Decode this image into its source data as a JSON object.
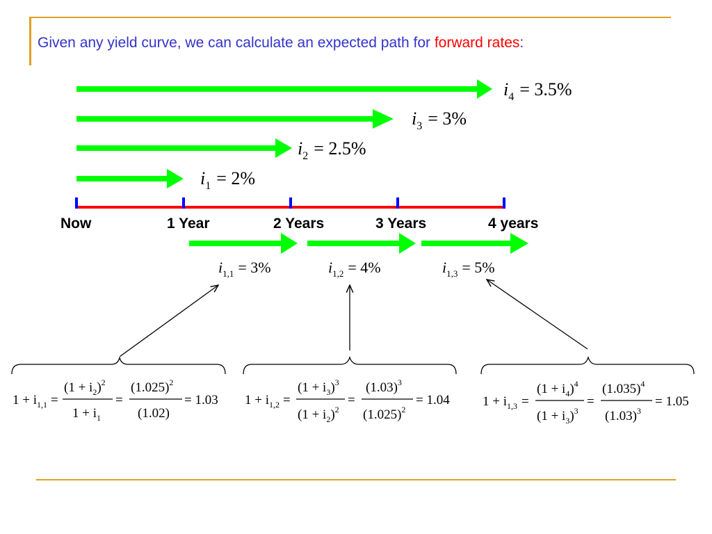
{
  "title": {
    "prefix": "Given any yield curve, we can calculate an expected path for ",
    "highlight": "forward rates",
    "suffix": ":"
  },
  "timeline": {
    "labels": [
      "Now",
      "1 Year",
      "2 Years",
      "3 Years",
      "4 years"
    ]
  },
  "spot_rates": [
    {
      "var": "i",
      "sub": "4",
      "rhs": "= 3.5%"
    },
    {
      "var": "i",
      "sub": "3",
      "rhs": "= 3%"
    },
    {
      "var": "i",
      "sub": "2",
      "rhs": "= 2.5%"
    },
    {
      "var": "i",
      "sub": "1",
      "rhs": "= 2%"
    }
  ],
  "forward_rates": [
    {
      "var": "i",
      "sub": "1,1",
      "rhs": "= 3%"
    },
    {
      "var": "i",
      "sub": "1,2",
      "rhs": "= 4%"
    },
    {
      "var": "i",
      "sub": "1,3",
      "rhs": "= 5%"
    }
  ],
  "formulas": [
    {
      "lhs": "1 + i",
      "lhs_sub": "1,1",
      "eq": "=",
      "f1_num": "(1 + i",
      "f1_num_sub": "2",
      "f1_num_tail": ")",
      "f1_num_exp": "2",
      "f1_den": "1 + i",
      "f1_den_sub": "1",
      "f1_den_tail": "",
      "f1_den_exp": "",
      "f2_num": "(1.025)",
      "f2_num_exp": "2",
      "f2_den": "(1.02)",
      "f2_den_exp": "",
      "result": "= 1.03"
    },
    {
      "lhs": "1 + i",
      "lhs_sub": "1,2",
      "eq": "=",
      "f1_num": "(1 + i",
      "f1_num_sub": "3",
      "f1_num_tail": ")",
      "f1_num_exp": "3",
      "f1_den": "(1 + i",
      "f1_den_sub": "2",
      "f1_den_tail": ")",
      "f1_den_exp": "2",
      "f2_num": "(1.03)",
      "f2_num_exp": "3",
      "f2_den": "(1.025)",
      "f2_den_exp": "2",
      "result": "= 1.04"
    },
    {
      "lhs": "1 + i",
      "lhs_sub": "1,3",
      "eq": "=",
      "f1_num": "(1 + i",
      "f1_num_sub": "4",
      "f1_num_tail": ")",
      "f1_num_exp": "4",
      "f1_den": "(1 + i",
      "f1_den_sub": "3",
      "f1_den_tail": ")",
      "f1_den_exp": "3",
      "f2_num": "(1.035)",
      "f2_num_exp": "4",
      "f2_den": "(1.03)",
      "f2_den_exp": "3",
      "result": "= 1.05"
    }
  ],
  "colors": {
    "arrow": "#00ff00",
    "timeline": "#ff0000",
    "tick": "#0000ff",
    "frame": "#e0a020",
    "title": "#3333cc",
    "highlight": "#ff0000"
  }
}
